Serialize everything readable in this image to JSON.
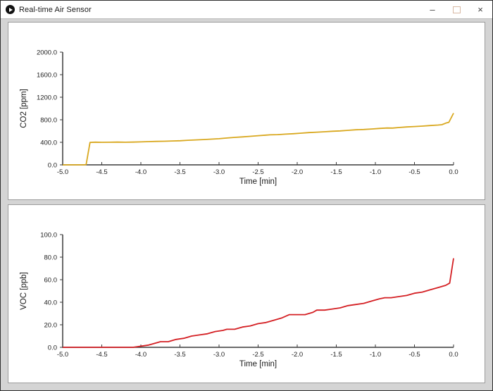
{
  "window": {
    "title": "Real-time Air Sensor",
    "icon": "play-circle-icon",
    "controls": {
      "minimize": "–",
      "maximize": "",
      "close": "×"
    }
  },
  "colors": {
    "co2_line": "#D9A81F",
    "voc_line": "#D41F23",
    "axis": "#3a3a3a",
    "tick_text": "#222222",
    "panel_bg": "#ffffff",
    "client_bg": "#d4d4d4",
    "titlebar_bg": "#ffffff"
  },
  "chart_data": [
    {
      "type": "line",
      "title": "",
      "xlabel": "Time [min]",
      "ylabel": "CO2 [ppm]",
      "xlim": [
        -5.0,
        0.0
      ],
      "ylim": [
        0,
        2000
      ],
      "xticks": [
        "-5.0",
        "-4.5",
        "-4.0",
        "-3.5",
        "-3.0",
        "-2.5",
        "-2.0",
        "-1.5",
        "-1.0",
        "-0.5",
        "0.0"
      ],
      "yticks": [
        "0.0",
        "400.0",
        "800.0",
        "1200.0",
        "1600.0",
        "2000.0"
      ],
      "grid": false,
      "legend": null,
      "series": [
        {
          "name": "CO2",
          "color": "#D9A81F",
          "points": [
            [
              -5.0,
              0
            ],
            [
              -4.85,
              0
            ],
            [
              -4.73,
              0
            ],
            [
              -4.7,
              5
            ],
            [
              -4.65,
              398
            ],
            [
              -4.58,
              403
            ],
            [
              -4.5,
              400
            ],
            [
              -4.4,
              401
            ],
            [
              -4.3,
              404
            ],
            [
              -4.2,
              401
            ],
            [
              -4.1,
              404
            ],
            [
              -4.0,
              407
            ],
            [
              -3.9,
              412
            ],
            [
              -3.8,
              416
            ],
            [
              -3.7,
              419
            ],
            [
              -3.6,
              424
            ],
            [
              -3.5,
              428
            ],
            [
              -3.4,
              436
            ],
            [
              -3.3,
              443
            ],
            [
              -3.2,
              449
            ],
            [
              -3.1,
              456
            ],
            [
              -3.0,
              464
            ],
            [
              -2.9,
              476
            ],
            [
              -2.8,
              487
            ],
            [
              -2.7,
              496
            ],
            [
              -2.6,
              506
            ],
            [
              -2.5,
              517
            ],
            [
              -2.4,
              527
            ],
            [
              -2.35,
              532
            ],
            [
              -2.25,
              536
            ],
            [
              -2.15,
              545
            ],
            [
              -2.05,
              553
            ],
            [
              -1.95,
              562
            ],
            [
              -1.85,
              572
            ],
            [
              -1.75,
              580
            ],
            [
              -1.65,
              588
            ],
            [
              -1.55,
              596
            ],
            [
              -1.45,
              603
            ],
            [
              -1.35,
              612
            ],
            [
              -1.25,
              622
            ],
            [
              -1.15,
              628
            ],
            [
              -1.05,
              636
            ],
            [
              -0.95,
              646
            ],
            [
              -0.85,
              654
            ],
            [
              -0.78,
              652
            ],
            [
              -0.7,
              662
            ],
            [
              -0.6,
              672
            ],
            [
              -0.5,
              680
            ],
            [
              -0.4,
              688
            ],
            [
              -0.3,
              697
            ],
            [
              -0.2,
              706
            ],
            [
              -0.15,
              712
            ],
            [
              -0.1,
              740
            ],
            [
              -0.06,
              755
            ],
            [
              0.0,
              918
            ]
          ]
        }
      ]
    },
    {
      "type": "line",
      "title": "",
      "xlabel": "Time [min]",
      "ylabel": "VOC [ppb]",
      "xlim": [
        -5.0,
        0.0
      ],
      "ylim": [
        0,
        100
      ],
      "xticks": [
        "-5.0",
        "-4.5",
        "-4.0",
        "-3.5",
        "-3.0",
        "-2.5",
        "-2.0",
        "-1.5",
        "-1.0",
        "-0.5",
        "0.0"
      ],
      "yticks": [
        "0.0",
        "20.0",
        "40.0",
        "60.0",
        "80.0",
        "100.0"
      ],
      "grid": false,
      "legend": null,
      "series": [
        {
          "name": "VOC",
          "color": "#D41F23",
          "points": [
            [
              -5.0,
              0
            ],
            [
              -4.8,
              0
            ],
            [
              -4.6,
              0
            ],
            [
              -4.4,
              0
            ],
            [
              -4.2,
              0
            ],
            [
              -4.1,
              0
            ],
            [
              -4.0,
              1
            ],
            [
              -3.9,
              2
            ],
            [
              -3.8,
              4
            ],
            [
              -3.75,
              5
            ],
            [
              -3.65,
              5
            ],
            [
              -3.55,
              7
            ],
            [
              -3.45,
              8
            ],
            [
              -3.35,
              10
            ],
            [
              -3.25,
              11
            ],
            [
              -3.15,
              12
            ],
            [
              -3.05,
              14
            ],
            [
              -2.95,
              15
            ],
            [
              -2.9,
              16
            ],
            [
              -2.8,
              16
            ],
            [
              -2.7,
              18
            ],
            [
              -2.6,
              19
            ],
            [
              -2.5,
              21
            ],
            [
              -2.4,
              22
            ],
            [
              -2.3,
              24
            ],
            [
              -2.2,
              26
            ],
            [
              -2.1,
              29
            ],
            [
              -2.0,
              29
            ],
            [
              -1.9,
              29
            ],
            [
              -1.8,
              31
            ],
            [
              -1.75,
              33
            ],
            [
              -1.65,
              33
            ],
            [
              -1.55,
              34
            ],
            [
              -1.45,
              35
            ],
            [
              -1.35,
              37
            ],
            [
              -1.25,
              38
            ],
            [
              -1.15,
              39
            ],
            [
              -1.05,
              41
            ],
            [
              -0.95,
              43
            ],
            [
              -0.88,
              44
            ],
            [
              -0.8,
              44
            ],
            [
              -0.7,
              45
            ],
            [
              -0.6,
              46
            ],
            [
              -0.5,
              48
            ],
            [
              -0.4,
              49
            ],
            [
              -0.3,
              51
            ],
            [
              -0.2,
              53
            ],
            [
              -0.1,
              55
            ],
            [
              -0.05,
              57
            ],
            [
              0.0,
              79
            ]
          ]
        }
      ]
    }
  ]
}
